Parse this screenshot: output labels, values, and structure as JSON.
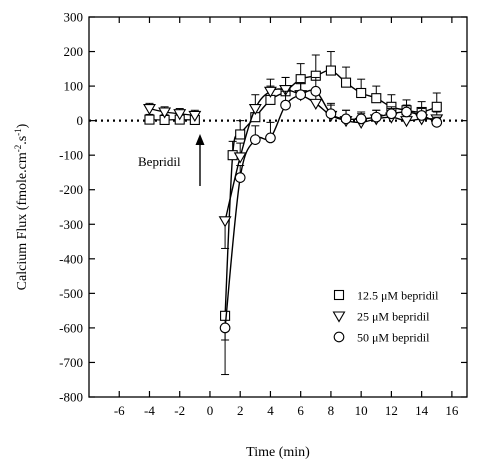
{
  "chart_data": {
    "type": "line",
    "title": "",
    "xlabel": "Time (min)",
    "ylabel_main": "Calcium Flux (fmole.cm",
    "ylabel_sup1": "-2",
    "ylabel_mid": ".s",
    "ylabel_sup2": "-1",
    "ylabel_end": ")",
    "xlim": [
      -8,
      17
    ],
    "ylim": [
      -800,
      300
    ],
    "xticks": [
      -6,
      -4,
      -2,
      0,
      2,
      4,
      6,
      8,
      10,
      12,
      14,
      16
    ],
    "yticks": [
      300,
      200,
      100,
      0,
      -100,
      -200,
      -300,
      -400,
      -500,
      -600,
      -700,
      -800
    ],
    "legend_position": "lower-right",
    "annotation": {
      "text": "Bepridil",
      "x": 0,
      "y": -160
    },
    "zero_line": true,
    "series": [
      {
        "name": "12.5 μM bepridil",
        "marker": "square",
        "x": [
          -4,
          -3,
          -2,
          -1,
          1,
          1.5,
          2,
          3,
          4,
          5,
          6,
          7,
          8,
          9,
          10,
          11,
          12,
          13,
          14,
          15
        ],
        "y": [
          3,
          2,
          3,
          2,
          -565,
          -100,
          -40,
          10,
          60,
          85,
          120,
          130,
          145,
          110,
          80,
          65,
          40,
          30,
          25,
          40
        ],
        "err": [
          15,
          15,
          15,
          15,
          170,
          40,
          40,
          35,
          40,
          40,
          45,
          60,
          55,
          45,
          40,
          35,
          35,
          30,
          30,
          40
        ]
      },
      {
        "name": "25 μM bepridil",
        "marker": "triangle-down",
        "x": [
          -4,
          -3,
          -2,
          -1,
          1,
          2,
          3,
          4,
          5,
          6,
          7,
          8,
          9,
          10,
          11,
          12,
          13,
          14,
          15
        ],
        "y": [
          35,
          25,
          20,
          15,
          -290,
          -105,
          35,
          85,
          90,
          75,
          50,
          15,
          0,
          -5,
          5,
          10,
          0,
          5,
          5
        ],
        "err": [
          15,
          15,
          15,
          15,
          80,
          40,
          40,
          35,
          35,
          35,
          35,
          30,
          30,
          25,
          25,
          25,
          25,
          20,
          20
        ]
      },
      {
        "name": "50 μM bepridil",
        "marker": "circle",
        "x": [
          1,
          2,
          3,
          4,
          5,
          6,
          7,
          8,
          9,
          10,
          11,
          12,
          13,
          14,
          15
        ],
        "y": [
          -600,
          -165,
          -55,
          -50,
          45,
          75,
          85,
          20,
          5,
          5,
          10,
          20,
          25,
          15,
          -5
        ],
        "err": [
          35,
          35,
          40,
          45,
          40,
          35,
          40,
          30,
          25,
          20,
          20,
          20,
          20,
          20,
          15
        ]
      }
    ]
  }
}
